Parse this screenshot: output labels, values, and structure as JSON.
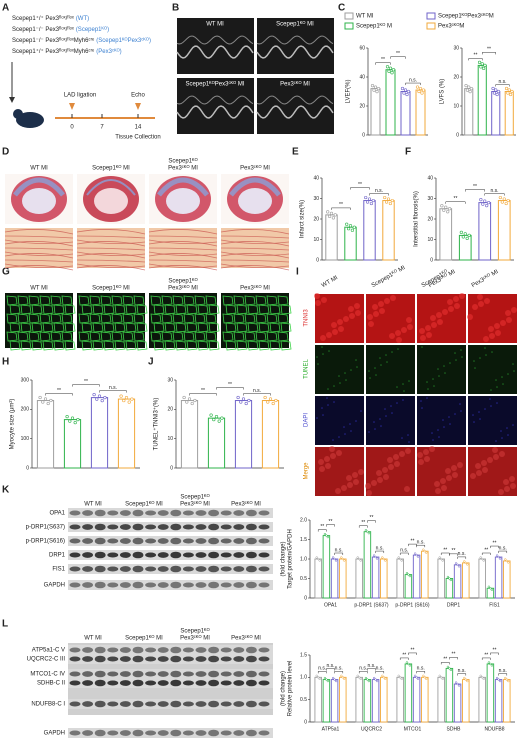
{
  "figure": {
    "letters": [
      "A",
      "B",
      "C",
      "D",
      "E",
      "F",
      "G",
      "H",
      "I",
      "J",
      "K",
      "L"
    ],
    "a": {
      "genotypes": [
        {
          "genotype": "Scepep1⁺/⁺ Pex3ᶠˡᵒˣ/ᶠˡᵒˣ",
          "group": "(WT)"
        },
        {
          "genotype": "Scepep1⁻/⁻ Pex3ᶠˡᵒˣ/ᶠˡᵒˣ",
          "group": "(Scepep1ᴷᴼ)"
        },
        {
          "genotype": "Scepep1⁻/⁻ Pex3ᶠˡᵒˣ/ᶠˡᵒˣMyh6ᶜʳᵉ",
          "group": "(Scepep1ᴷᴼPex3ᶜᴷᴼ)"
        },
        {
          "genotype": "Scepep1⁺/⁺ Pex3ᶠˡᵒˣ/ᶠˡᵒˣMyh6ᶜʳᵉ",
          "group": "(Pex3ᶜᴷᴼ)"
        }
      ],
      "lad": "LAD ligation",
      "echo": "Echo",
      "days": [
        "0",
        "7",
        "14"
      ],
      "tissue": "Tissue Collection"
    },
    "b_labels": [
      "WT MI",
      "Scepep1ᴷᴼ MI",
      "Scepep1ᴷᴼPex3ᶜᴷᴼ MI",
      "Pex3ᶜᴷᴼ MI"
    ],
    "c_legend": [
      {
        "name": "WT MI",
        "color": "#9e9e9e"
      },
      {
        "name": "Scepep1ᴷᴼPex3ᶜᴷᴼM",
        "color": "#6f63c9"
      },
      {
        "name": "Scepep1ᴷᴼ M",
        "color": "#2db34a"
      },
      {
        "name": "Pex3ᶜᴷᴼM",
        "color": "#f2a93b"
      }
    ],
    "group_headers": [
      [
        "WT MI"
      ],
      [
        "Scepep1ᴷᴼ MI"
      ],
      [
        "Scepep1ᴷᴼ",
        "Pex3ᶜᴷᴼ MI"
      ],
      [
        "Pex3ᶜᴷᴼ MI"
      ]
    ],
    "i_rows": [
      "TNNI3",
      "TUNEL",
      "DAPI",
      "Merge"
    ],
    "k_rows": [
      "OPA1",
      "p-DRP1(S637)",
      "p-DRP1(S616)",
      "DRP1",
      "FIS1",
      "GAPDH"
    ],
    "l_rows": [
      "ATP5a1-C V",
      "UQCRC2-C III",
      "MTCO1-C IV",
      "SDHB-C II",
      "NDUFB8-C I",
      "GAPDH"
    ]
  },
  "chart_data": [
    {
      "type": "bar",
      "ylabel": [
        "LVEF(%)"
      ],
      "values": [
        32,
        45,
        30,
        31
      ],
      "colors": [
        "#9e9e9e",
        "#2db34a",
        "#6f63c9",
        "#f2a93b"
      ],
      "ylim": [
        0,
        60
      ],
      "yticks": [
        0,
        20,
        40,
        60
      ],
      "annotations": [
        "**",
        "**",
        "n.s."
      ]
    },
    {
      "type": "bar",
      "ylabel": [
        "LVFS (%)"
      ],
      "values": [
        16,
        24,
        15,
        15
      ],
      "colors": [
        "#9e9e9e",
        "#2db34a",
        "#6f63c9",
        "#f2a93b"
      ],
      "ylim": [
        0,
        30
      ],
      "yticks": [
        0,
        10,
        20,
        30
      ],
      "annotations": [
        "**",
        "**",
        "n.s."
      ]
    },
    {
      "type": "bar",
      "ylabel": [
        "Infarct size(%)"
      ],
      "values": [
        22,
        16,
        29,
        29
      ],
      "colors": [
        "#9e9e9e",
        "#2db34a",
        "#6f63c9",
        "#f2a93b"
      ],
      "ylim": [
        0,
        40
      ],
      "yticks": [
        0,
        10,
        20,
        30,
        40
      ],
      "annotations": [
        "**",
        "**",
        "n.s."
      ]
    },
    {
      "type": "bar",
      "ylabel": [
        "Interstitial fibrosis(%)"
      ],
      "values": [
        25,
        12,
        28,
        29
      ],
      "colors": [
        "#9e9e9e",
        "#2db34a",
        "#6f63c9",
        "#f2a93b"
      ],
      "ylim": [
        0,
        40
      ],
      "yticks": [
        0,
        10,
        20,
        30,
        40
      ],
      "annotations": [
        "**",
        "**",
        "n.s."
      ]
    },
    {
      "type": "bar",
      "ylabel": [
        "Myocyte size (μm²)"
      ],
      "values": [
        230,
        165,
        240,
        235
      ],
      "colors": [
        "#9e9e9e",
        "#2db34a",
        "#6f63c9",
        "#f2a93b"
      ],
      "ylim": [
        0,
        300
      ],
      "yticks": [
        0,
        100,
        200,
        300
      ],
      "annotations": [
        "**",
        "**",
        "n.s."
      ]
    },
    {
      "type": "bar",
      "ylabel": [
        "TUNEL⁺TNNI3⁺(%)"
      ],
      "values": [
        23,
        17,
        23,
        23
      ],
      "colors": [
        "#9e9e9e",
        "#2db34a",
        "#6f63c9",
        "#f2a93b"
      ],
      "ylim": [
        0,
        30
      ],
      "yticks": [
        0,
        10,
        20,
        30
      ],
      "annotations": [
        "**",
        "**",
        "n.s."
      ]
    },
    {
      "type": "grouped",
      "ylabel": [
        "Target protein/GAPDH",
        "(fold change)"
      ],
      "categories": [
        "OPA1",
        "p-DRP1 (S637)",
        "p-DRP1 (S616)",
        "DRP1",
        "FIS1"
      ],
      "series": [
        {
          "color": "#9e9e9e",
          "values": [
            1.0,
            1.0,
            1.0,
            1.0,
            1.0
          ]
        },
        {
          "color": "#2db34a",
          "values": [
            1.6,
            1.7,
            0.6,
            0.5,
            0.25
          ]
        },
        {
          "color": "#6f63c9",
          "values": [
            1.0,
            1.05,
            1.1,
            0.85,
            1.05
          ]
        },
        {
          "color": "#f2a93b",
          "values": [
            1.0,
            1.0,
            1.2,
            0.9,
            0.95
          ]
        }
      ],
      "ylim": [
        0,
        2
      ],
      "yticks": [
        0,
        0.5,
        {
          "value": 1,
          "label": "1.0"
        },
        1.5,
        {
          "value": 2,
          "label": "2.0"
        }
      ],
      "annotations": [
        [
          "**",
          "**",
          "n.s."
        ],
        [
          "**",
          "**",
          "n.s."
        ],
        [
          "n.s.",
          "**",
          "n.s."
        ],
        [
          "**",
          "**",
          "n.s."
        ],
        [
          "**",
          "**",
          "n.s."
        ]
      ]
    },
    {
      "type": "grouped",
      "ylabel": [
        "Relative protein level",
        "(fold change)"
      ],
      "categories": [
        "ATP5a1",
        "UQCRC2",
        "MTCO1",
        "SDHB",
        "NDUFB8"
      ],
      "series": [
        {
          "color": "#9e9e9e",
          "values": [
            1.0,
            1.0,
            1.0,
            1.0,
            1.0
          ]
        },
        {
          "color": "#2db34a",
          "values": [
            0.95,
            0.95,
            1.3,
            1.2,
            1.3
          ]
        },
        {
          "color": "#6f63c9",
          "values": [
            0.95,
            0.95,
            1.0,
            0.85,
            0.95
          ]
        },
        {
          "color": "#f2a93b",
          "values": [
            1.0,
            1.0,
            1.0,
            0.95,
            0.95
          ]
        }
      ],
      "ylim": [
        0,
        1.5
      ],
      "yticks": [
        0,
        0.5,
        {
          "value": 1,
          "label": "1.0"
        },
        1.5
      ],
      "annotations": [
        [
          "n.s.",
          "n.s.",
          "n.s."
        ],
        [
          "n.s.",
          "n.s.",
          "n.s."
        ],
        [
          "**",
          "**",
          "n.s."
        ],
        [
          "**",
          "**",
          "n.s."
        ],
        [
          "**",
          "**",
          "n.s."
        ]
      ]
    }
  ]
}
